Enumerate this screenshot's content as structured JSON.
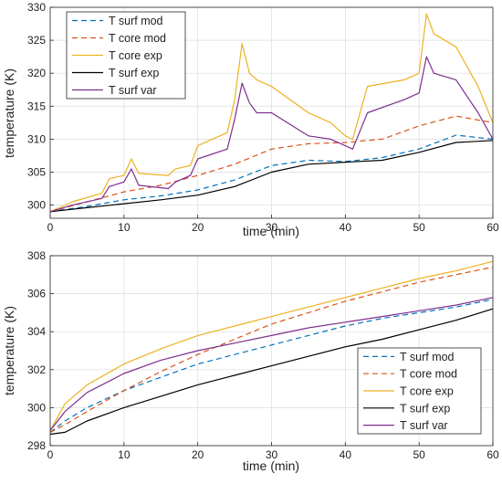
{
  "chart_data": [
    {
      "type": "line",
      "xlabel": "time (min)",
      "ylabel": "temperature (K)",
      "xlim": [
        0,
        60
      ],
      "ylim": [
        298,
        330
      ],
      "xticks": [
        0,
        10,
        20,
        30,
        40,
        50,
        60
      ],
      "yticks": [
        300,
        305,
        310,
        315,
        320,
        325,
        330
      ],
      "grid": true,
      "legend_position": "top-left",
      "series": [
        {
          "name": "T surf mod",
          "color": "#0072BD",
          "style": "dashed",
          "x": [
            0,
            5,
            10,
            15,
            20,
            25,
            30,
            35,
            40,
            45,
            50,
            55,
            60
          ],
          "y": [
            299.0,
            299.8,
            300.8,
            301.4,
            302.3,
            303.8,
            306.0,
            306.8,
            306.6,
            307.2,
            308.5,
            310.6,
            310.0
          ]
        },
        {
          "name": "T core mod",
          "color": "#D95319",
          "style": "dashed",
          "x": [
            0,
            5,
            10,
            15,
            20,
            25,
            30,
            35,
            40,
            45,
            50,
            55,
            60
          ],
          "y": [
            299.0,
            300.5,
            302.0,
            303.0,
            304.5,
            306.2,
            308.5,
            309.3,
            309.5,
            310.0,
            312.0,
            313.5,
            312.5
          ]
        },
        {
          "name": "T core exp",
          "color": "#EDB120",
          "style": "solid",
          "x": [
            0,
            3,
            7,
            8,
            10,
            11,
            12,
            16,
            17,
            19,
            20,
            24,
            25,
            26,
            27,
            28,
            30,
            35,
            38,
            40,
            41,
            43,
            48,
            50,
            51,
            52,
            55,
            58,
            60
          ],
          "y": [
            299.0,
            300.5,
            301.8,
            304.0,
            304.5,
            307.0,
            304.8,
            304.5,
            305.5,
            306.0,
            309.0,
            311.0,
            316.0,
            324.5,
            320.0,
            319.0,
            318.0,
            314.0,
            312.5,
            310.5,
            310.0,
            318.0,
            319.0,
            320.0,
            329.0,
            326.0,
            324.0,
            318.0,
            312.5
          ]
        },
        {
          "name": "T surf exp",
          "color": "#000000",
          "style": "solid",
          "x": [
            0,
            5,
            10,
            15,
            20,
            25,
            30,
            35,
            40,
            45,
            50,
            55,
            60
          ],
          "y": [
            299.0,
            299.6,
            300.2,
            300.8,
            301.5,
            302.8,
            305.0,
            306.2,
            306.5,
            306.8,
            308.0,
            309.5,
            309.8
          ]
        },
        {
          "name": "T surf var",
          "color": "#7E2F8E",
          "style": "solid",
          "x": [
            0,
            3,
            7,
            8,
            10,
            11,
            12,
            16,
            17,
            19,
            20,
            24,
            25,
            26,
            27,
            28,
            30,
            35,
            38,
            40,
            41,
            43,
            48,
            50,
            51,
            52,
            55,
            58,
            60
          ],
          "y": [
            299.0,
            300.0,
            301.0,
            302.8,
            303.5,
            305.5,
            303.0,
            302.5,
            303.5,
            304.5,
            307.0,
            308.5,
            313.0,
            318.5,
            315.5,
            314.0,
            314.0,
            310.5,
            310.0,
            309.0,
            308.5,
            314.0,
            316.0,
            317.0,
            322.5,
            320.0,
            319.0,
            314.0,
            310.0
          ]
        }
      ]
    },
    {
      "type": "line",
      "xlabel": "time (min)",
      "ylabel": "temperature (K)",
      "xlim": [
        0,
        60
      ],
      "ylim": [
        298,
        308
      ],
      "xticks": [
        0,
        10,
        20,
        30,
        40,
        50,
        60
      ],
      "yticks": [
        298,
        300,
        302,
        304,
        306,
        308
      ],
      "grid": true,
      "legend_position": "bottom-right",
      "series": [
        {
          "name": "T surf mod",
          "color": "#0072BD",
          "style": "dashed",
          "x": [
            0,
            2,
            5,
            10,
            15,
            20,
            25,
            30,
            35,
            40,
            45,
            50,
            55,
            60
          ],
          "y": [
            298.7,
            299.3,
            300.0,
            300.9,
            301.6,
            302.3,
            302.8,
            303.3,
            303.8,
            304.3,
            304.7,
            305.0,
            305.3,
            305.7
          ]
        },
        {
          "name": "T core mod",
          "color": "#D95319",
          "style": "dashed",
          "x": [
            0,
            2,
            5,
            10,
            15,
            20,
            25,
            30,
            35,
            40,
            45,
            50,
            55,
            60
          ],
          "y": [
            298.7,
            299.1,
            299.8,
            300.9,
            301.9,
            302.8,
            303.6,
            304.4,
            305.0,
            305.6,
            306.1,
            306.6,
            307.0,
            307.4
          ]
        },
        {
          "name": "T core exp",
          "color": "#EDB120",
          "style": "solid",
          "x": [
            0,
            2,
            5,
            10,
            15,
            20,
            25,
            30,
            35,
            40,
            45,
            50,
            55,
            60
          ],
          "y": [
            298.8,
            300.2,
            301.2,
            302.3,
            303.1,
            303.8,
            304.3,
            304.8,
            305.3,
            305.8,
            306.3,
            306.8,
            307.2,
            307.7
          ]
        },
        {
          "name": "T surf exp",
          "color": "#000000",
          "style": "solid",
          "x": [
            0,
            2,
            5,
            10,
            15,
            20,
            25,
            30,
            35,
            40,
            45,
            50,
            55,
            60
          ],
          "y": [
            298.6,
            298.7,
            299.3,
            300.0,
            300.6,
            301.2,
            301.7,
            302.2,
            302.7,
            303.2,
            303.6,
            304.1,
            304.6,
            305.2
          ]
        },
        {
          "name": "T surf var",
          "color": "#7E2F8E",
          "style": "solid",
          "x": [
            0,
            2,
            5,
            10,
            15,
            20,
            25,
            30,
            35,
            40,
            45,
            50,
            55,
            60
          ],
          "y": [
            298.8,
            299.8,
            300.8,
            301.8,
            302.5,
            303.0,
            303.4,
            303.8,
            304.2,
            304.5,
            304.8,
            305.1,
            305.4,
            305.8
          ]
        }
      ]
    }
  ]
}
